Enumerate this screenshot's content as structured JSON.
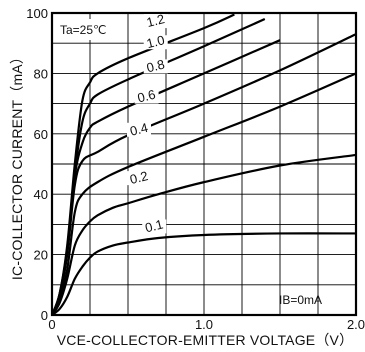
{
  "chart_data": {
    "type": "line",
    "xlabel": "VCE-COLLECTOR-EMITTER VOLTAGE（V）",
    "ylabel": "IC-COLLECTOR CURRENT（mA）",
    "xlim": [
      0,
      2.0
    ],
    "ylim": [
      0,
      100
    ],
    "x_ticks": [
      "0",
      "1.0",
      "2.0"
    ],
    "y_ticks": [
      "0",
      "20",
      "40",
      "60",
      "80",
      "100"
    ],
    "grid": true,
    "annotations": {
      "temperature": "Ta=25℃",
      "ib_zero": "IB=0mA"
    },
    "series": [
      {
        "name": "0.1",
        "x": [
          0,
          0.05,
          0.1,
          0.15,
          0.2,
          0.25,
          0.3,
          0.4,
          0.5,
          0.7,
          1.0,
          1.5,
          2.0
        ],
        "y": [
          0,
          2,
          6,
          12,
          16,
          19,
          21,
          23,
          24,
          25.5,
          26.5,
          27,
          27
        ]
      },
      {
        "name": "0.2",
        "x": [
          0,
          0.05,
          0.1,
          0.15,
          0.2,
          0.25,
          0.3,
          0.4,
          0.5,
          0.7,
          1.0,
          1.5,
          2.0
        ],
        "y": [
          0,
          4,
          12,
          23,
          28,
          31,
          33,
          35.5,
          37,
          40,
          44,
          49.5,
          53
        ]
      },
      {
        "name": "0.4",
        "x": [
          0,
          0.05,
          0.1,
          0.15,
          0.2,
          0.3,
          0.5,
          1.0,
          1.5,
          2.0
        ],
        "y": [
          0,
          5,
          15,
          34,
          40,
          44,
          49,
          59,
          69,
          80
        ]
      },
      {
        "name": "0.6",
        "x": [
          0,
          0.05,
          0.1,
          0.15,
          0.2,
          0.3,
          0.5,
          1.0,
          1.5,
          2.0
        ],
        "y": [
          0,
          6,
          20,
          43,
          51,
          54,
          59.5,
          70,
          81,
          93
        ]
      },
      {
        "name": "0.8",
        "x": [
          0,
          0.05,
          0.1,
          0.15,
          0.2,
          0.25,
          0.3,
          0.5,
          1.0,
          1.5
        ],
        "y": [
          0,
          6,
          21,
          46,
          57,
          62,
          64,
          69,
          80,
          91
        ]
      },
      {
        "name": "1.0",
        "x": [
          0,
          0.05,
          0.1,
          0.15,
          0.2,
          0.25,
          0.3,
          0.5,
          1.0,
          1.4
        ],
        "y": [
          0,
          7,
          22,
          47,
          64,
          70,
          73,
          78,
          89,
          98
        ]
      },
      {
        "name": "1.2",
        "x": [
          0,
          0.05,
          0.1,
          0.15,
          0.2,
          0.25,
          0.3,
          0.5,
          1.0,
          1.2
        ],
        "y": [
          0,
          7,
          23,
          50,
          71,
          77,
          80,
          85,
          95,
          99.5
        ]
      }
    ]
  }
}
